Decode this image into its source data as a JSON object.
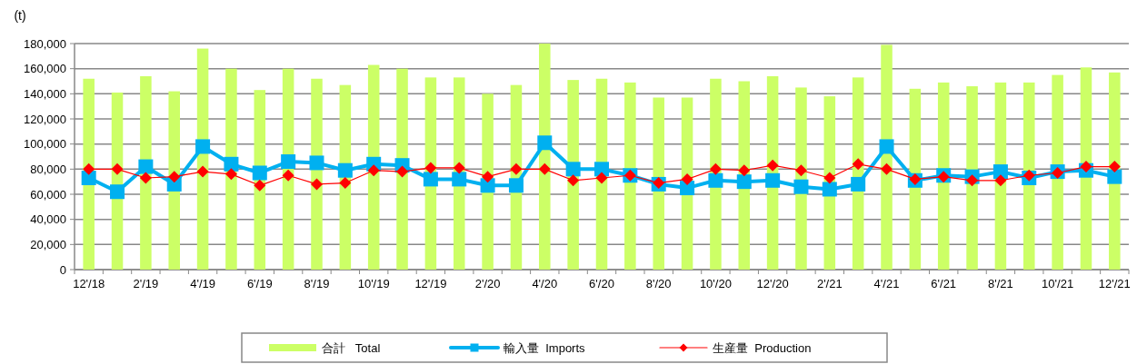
{
  "chart_data": {
    "type": "bar",
    "ylabel": "(t)",
    "categories": [
      "12'/18",
      null,
      "2'/19",
      null,
      "4'/19",
      null,
      "6'/19",
      null,
      "8'/19",
      null,
      "10'/19",
      null,
      "12'/19",
      null,
      "2'/20",
      null,
      "4'/20",
      null,
      "6'/20",
      null,
      "8'/20",
      null,
      "10'/20",
      null,
      "12'/20",
      null,
      "2'/21",
      null,
      "4'/21",
      null,
      "6'/21",
      null,
      "8'/21",
      null,
      "10'/21",
      null,
      "12'/21"
    ],
    "series": [
      {
        "name": "合計   Total",
        "color": "#ccff66",
        "values": [
          152000,
          141000,
          154000,
          142000,
          176000,
          160000,
          143000,
          160000,
          152000,
          147000,
          163000,
          160000,
          153000,
          153000,
          140000,
          147000,
          180000,
          151000,
          152000,
          149000,
          137000,
          137000,
          152000,
          150000,
          154000,
          145000,
          138000,
          153000,
          179000,
          144000,
          149000,
          146000,
          149000,
          149000,
          155000,
          161000,
          157000
        ]
      },
      {
        "name": "輸入量  Imports",
        "type": "line",
        "marker": "square",
        "color": "#00b0f0",
        "values": [
          73000,
          62000,
          82000,
          68000,
          98000,
          84000,
          77000,
          86000,
          85000,
          79000,
          84000,
          83000,
          72000,
          72000,
          67000,
          67000,
          101000,
          80000,
          80000,
          75000,
          68000,
          65000,
          71000,
          70000,
          71000,
          66000,
          64000,
          68000,
          98000,
          71000,
          75000,
          74000,
          78000,
          73000,
          78000,
          79000,
          74000
        ]
      },
      {
        "name": "生産量  Production",
        "type": "line",
        "marker": "diamond",
        "color": "#ff0000",
        "values": [
          80000,
          80000,
          73000,
          74000,
          78000,
          76000,
          67000,
          75000,
          68000,
          69000,
          79000,
          78000,
          81000,
          81000,
          74000,
          80000,
          80000,
          71000,
          73000,
          75000,
          69000,
          72000,
          80000,
          79000,
          83000,
          79000,
          73000,
          84000,
          80000,
          72000,
          74000,
          71000,
          71000,
          75000,
          77000,
          82000,
          82000
        ]
      }
    ],
    "ylim": [
      0,
      180000
    ],
    "yticks": [
      {
        "value": 0,
        "label": "0"
      },
      {
        "value": 20000,
        "label": "20,000"
      },
      {
        "value": 40000,
        "label": "40,000"
      },
      {
        "value": 60000,
        "label": "60,000"
      },
      {
        "value": 80000,
        "label": "80,000"
      },
      {
        "value": 100000,
        "label": "100,000"
      },
      {
        "value": 120000,
        "label": "120,000"
      },
      {
        "value": 140000,
        "label": "140,000"
      },
      {
        "value": 160000,
        "label": "160,000"
      },
      {
        "value": 180000,
        "label": "180,000"
      }
    ],
    "grid": "y",
    "legend": "bottom"
  }
}
